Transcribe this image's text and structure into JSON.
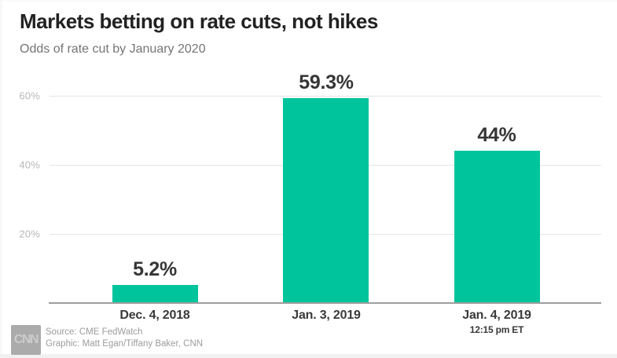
{
  "chart_data": {
    "type": "bar",
    "title": "Markets betting on rate cuts, not hikes",
    "subtitle": "Odds of rate cut by January 2020",
    "categories": [
      "Dec. 4, 2018",
      "Jan. 3, 2019",
      "Jan. 4, 2019"
    ],
    "category_sublabels": [
      "",
      "",
      "12:15 pm ET"
    ],
    "values": [
      5.2,
      59.3,
      44
    ],
    "value_labels": [
      "5.2%",
      "59.3%",
      "44%"
    ],
    "yticks": [
      {
        "value": 20,
        "label": "20%"
      },
      {
        "value": 40,
        "label": "40%"
      },
      {
        "value": 60,
        "label": "60%"
      }
    ],
    "ylim": [
      0,
      65
    ],
    "xlabel": "",
    "ylabel": "",
    "grid": true,
    "legend_position": "none",
    "bar_color": "#00c49c"
  },
  "footer": {
    "logo_text": "CNN",
    "source": "Source: CME FedWatch",
    "credit": "Graphic: Matt Egan/Tiffany Baker, CNN"
  }
}
